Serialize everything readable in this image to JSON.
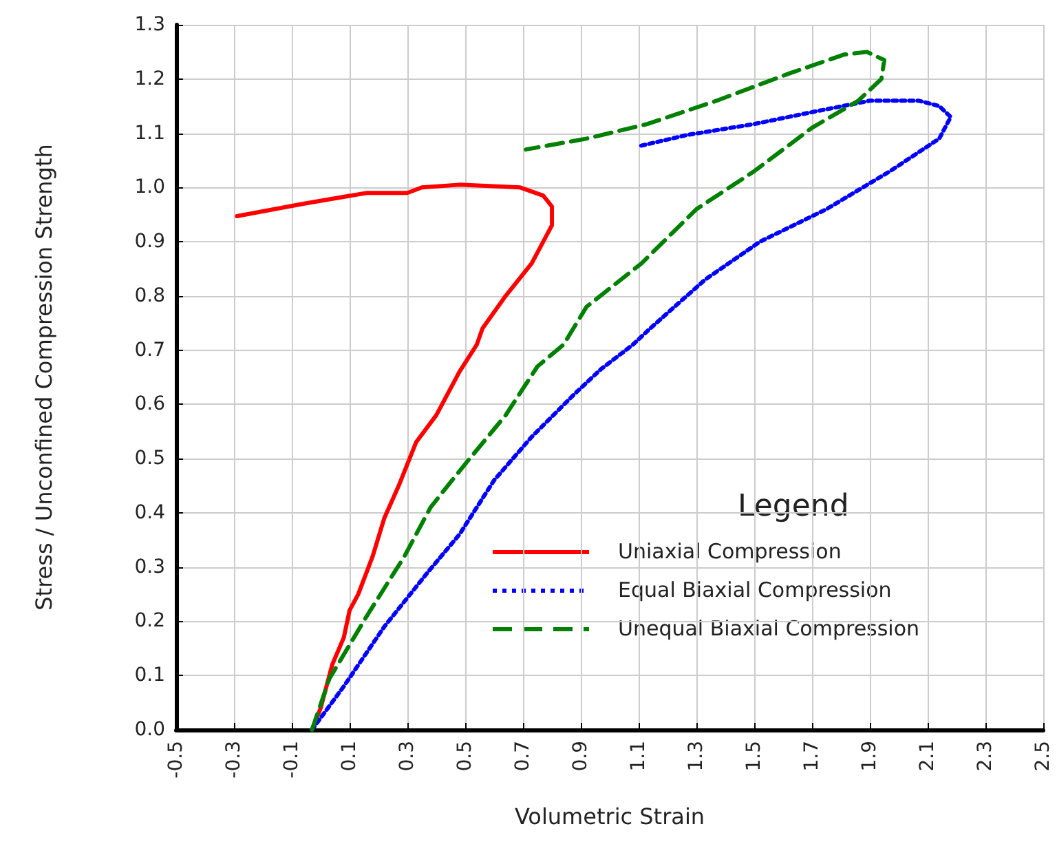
{
  "chart_data": {
    "type": "line",
    "xlabel": "Volumetric Strain",
    "ylabel": "Stress / Unconfined Compression Strength",
    "legend_title": "Legend",
    "xlim": [
      -0.5,
      2.5
    ],
    "xticks": [
      -0.5,
      -0.3,
      -0.1,
      0.1,
      0.3,
      0.5,
      0.7,
      0.9,
      1.1,
      1.3,
      1.5,
      1.7,
      1.9,
      2.1,
      2.3,
      2.5
    ],
    "ylim": [
      0,
      1.3
    ],
    "yticks": [
      {
        "value": 0,
        "label": "0.0"
      },
      0.1,
      0.2,
      0.3,
      0.4,
      0.5,
      0.6,
      0.7,
      0.8,
      0.9,
      {
        "value": 1,
        "label": "1.0"
      },
      1.1,
      1.2,
      1.3
    ],
    "grid": true,
    "legend": "bottom right",
    "marker": "none",
    "series": [
      {
        "name": "Uniaxial Compression",
        "color": "#ff0000",
        "line_style": "solid",
        "x": [
          -0.03,
          0.0,
          0.04,
          0.08,
          0.1,
          0.13,
          0.18,
          0.22,
          0.27,
          0.33,
          0.4,
          0.48,
          0.54,
          0.56,
          0.64,
          0.73,
          0.8,
          0.8,
          0.77,
          0.69,
          0.48,
          0.35,
          0.3,
          0.16,
          -0.06,
          -0.29
        ],
        "values": [
          0,
          0.04,
          0.12,
          0.17,
          0.22,
          0.25,
          0.32,
          0.39,
          0.45,
          0.53,
          0.58,
          0.66,
          0.71,
          0.74,
          0.8,
          0.86,
          0.93,
          0.965,
          0.985,
          1.0,
          1.005,
          1.0,
          0.99,
          0.99,
          0.97,
          0.947
        ]
      },
      {
        "name": "Equal Biaxial Compression",
        "color": "#0000ff",
        "line_style": "dotted",
        "x": [
          -0.03,
          0.08,
          0.22,
          0.37,
          0.48,
          0.6,
          0.73,
          0.88,
          0.97,
          1.08,
          1.14,
          1.33,
          1.52,
          1.75,
          1.97,
          2.14,
          2.18,
          2.14,
          2.07,
          1.9,
          1.71,
          1.5,
          1.27,
          1.1
        ],
        "values": [
          0,
          0.08,
          0.19,
          0.29,
          0.36,
          0.46,
          0.54,
          0.62,
          0.665,
          0.71,
          0.74,
          0.83,
          0.9,
          0.96,
          1.03,
          1.09,
          1.13,
          1.15,
          1.16,
          1.16,
          1.14,
          1.117,
          1.097,
          1.076
        ]
      },
      {
        "name": "Unequal Biaxial Compression",
        "color": "#008000",
        "line_style": "dashed",
        "x": [
          -0.03,
          0.03,
          0.16,
          0.29,
          0.38,
          0.5,
          0.64,
          0.75,
          0.84,
          0.92,
          1.11,
          1.3,
          1.5,
          1.7,
          1.86,
          1.94,
          1.95,
          1.89,
          1.81,
          1.62,
          1.37,
          1.13,
          0.92,
          0.71
        ],
        "values": [
          0,
          0.094,
          0.21,
          0.32,
          0.41,
          0.49,
          0.58,
          0.67,
          0.71,
          0.78,
          0.86,
          0.96,
          1.03,
          1.11,
          1.16,
          1.2,
          1.235,
          1.25,
          1.245,
          1.21,
          1.16,
          1.117,
          1.09,
          1.07
        ]
      }
    ]
  }
}
